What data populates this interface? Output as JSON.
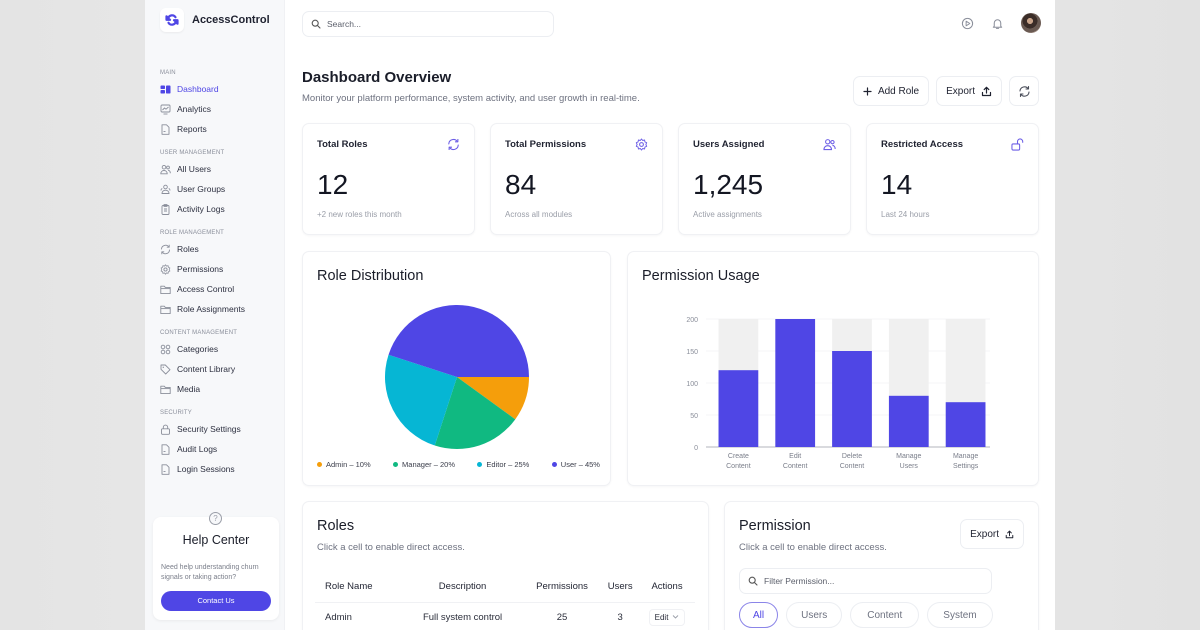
{
  "app": {
    "name": "AccessControl",
    "accent": "#4f46e5"
  },
  "sidebar": {
    "sections": [
      {
        "title": "MAIN",
        "items": [
          {
            "label": "Dashboard",
            "icon": "dashboard-icon",
            "active": true
          },
          {
            "label": "Analytics",
            "icon": "analytics-icon"
          },
          {
            "label": "Reports",
            "icon": "document-icon"
          }
        ]
      },
      {
        "title": "USER MANAGEMENT",
        "items": [
          {
            "label": "All Users",
            "icon": "users-icon"
          },
          {
            "label": "User Groups",
            "icon": "user-group-icon"
          },
          {
            "label": "Activity Logs",
            "icon": "clipboard-icon"
          }
        ]
      },
      {
        "title": "ROLE MANAGEMENT",
        "items": [
          {
            "label": "Roles",
            "icon": "refresh-icon"
          },
          {
            "label": "Permissions",
            "icon": "gear-icon"
          },
          {
            "label": "Access Control",
            "icon": "folder-icon"
          },
          {
            "label": "Role Assignments",
            "icon": "folder-icon"
          }
        ]
      },
      {
        "title": "CONTENT MANAGEMENT",
        "items": [
          {
            "label": "Categories",
            "icon": "grid-icon"
          },
          {
            "label": "Content Library",
            "icon": "tag-icon"
          },
          {
            "label": "Media",
            "icon": "folder-icon"
          }
        ]
      },
      {
        "title": "SECURITY",
        "items": [
          {
            "label": "Security Settings",
            "icon": "lock-icon"
          },
          {
            "label": "Audit Logs",
            "icon": "document-icon"
          },
          {
            "label": "Login Sessions",
            "icon": "document-icon"
          }
        ]
      }
    ],
    "help": {
      "title": "Help Center",
      "text": "Need help understanding churn signals or taking action?",
      "button": "Contact Us",
      "icon_glyph": "?"
    }
  },
  "header": {
    "search_placeholder": "Search...",
    "title": "Dashboard Overview",
    "subtitle": "Monitor your platform performance, system activity, and user growth in real-time.",
    "add_role": "Add Role",
    "export": "Export"
  },
  "stats": [
    {
      "title": "Total Roles",
      "value": "12",
      "foot": "+2 new roles this month",
      "icon": "refresh-icon"
    },
    {
      "title": "Total Permissions",
      "value": "84",
      "foot": "Across all modules",
      "icon": "gear-icon"
    },
    {
      "title": "Users Assigned",
      "value": "1,245",
      "foot": "Active assignments",
      "icon": "users-icon"
    },
    {
      "title": "Restricted Access",
      "value": "14",
      "foot": "Last 24 hours",
      "icon": "unlock-icon"
    }
  ],
  "chart_data": [
    {
      "type": "pie",
      "title": "Role Distribution",
      "categories": [
        "Admin",
        "Manager",
        "Editor",
        "User"
      ],
      "values": [
        10,
        20,
        25,
        45
      ],
      "legend_labels": [
        "Admin – 10%",
        "Manager – 20%",
        "Editor – 25%",
        "User – 45%"
      ],
      "colors": [
        "#f59e0b",
        "#10b981",
        "#06b6d4",
        "#4f46e5"
      ],
      "legend_position": "bottom"
    },
    {
      "type": "bar",
      "title": "Permission Usage",
      "categories": [
        "Create Content",
        "Edit Content",
        "Delete Content",
        "Manage Users",
        "Manage Settings"
      ],
      "category_lines": [
        [
          "Create",
          "Content"
        ],
        [
          "Edit",
          "Content"
        ],
        [
          "Delete",
          "Content"
        ],
        [
          "Manage",
          "Users"
        ],
        [
          "Manage",
          "Settings"
        ]
      ],
      "values": [
        120,
        200,
        150,
        80,
        70
      ],
      "ylim": [
        0,
        200
      ],
      "yticks": [
        0,
        50,
        100,
        150,
        200
      ],
      "bar_color": "#4f46e5",
      "track_color": "#f0f0f0",
      "grid": true
    }
  ],
  "roles": {
    "title": "Roles",
    "subtitle": "Click a cell to enable direct access.",
    "columns": [
      "Role Name",
      "Description",
      "Permissions",
      "Users",
      "Actions"
    ],
    "rows": [
      {
        "name": "Admin",
        "description": "Full system control",
        "permissions": "25",
        "users": "3",
        "action": "Edit"
      }
    ]
  },
  "permission": {
    "title": "Permission",
    "subtitle": "Click a cell to enable direct access.",
    "export": "Export",
    "filter_placeholder": "Filter Permission...",
    "chips": [
      "All",
      "Users",
      "Content",
      "System"
    ],
    "active_chip": "All"
  }
}
